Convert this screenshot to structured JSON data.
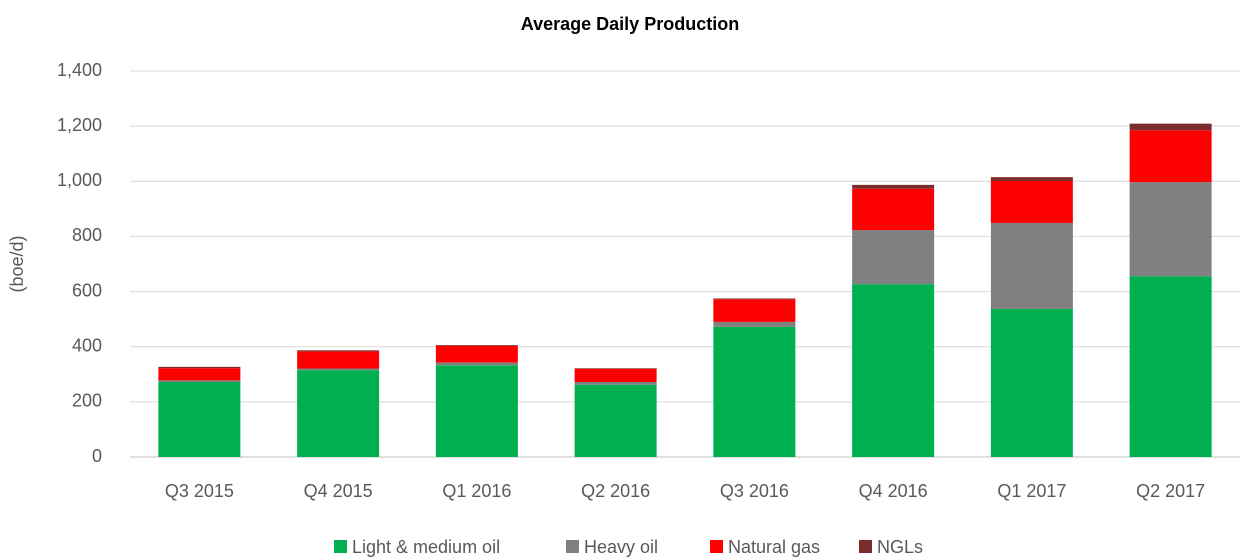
{
  "chart_data": {
    "type": "bar",
    "stacked": true,
    "title": "Average Daily Production",
    "y_label": "(boe/d)",
    "categories": [
      "Q3 2015",
      "Q4 2015",
      "Q1 2016",
      "Q2 2016",
      "Q3 2016",
      "Q4 2016",
      "Q1 2017",
      "Q2 2017"
    ],
    "series": [
      {
        "name": "Light & medium oil",
        "color": "#00b050",
        "values": [
          272,
          315,
          333,
          262,
          472,
          627,
          537,
          656
        ]
      },
      {
        "name": "Heavy oil",
        "color": "#808080",
        "values": [
          6,
          6,
          10,
          10,
          18,
          196,
          312,
          341
        ]
      },
      {
        "name": "Natural gas",
        "color": "#ff0000",
        "values": [
          44,
          62,
          60,
          48,
          82,
          150,
          152,
          188
        ]
      },
      {
        "name": "NGLs",
        "color": "#7b2c2c",
        "values": [
          5,
          4,
          3,
          2,
          3,
          14,
          14,
          24
        ]
      }
    ],
    "ylim": [
      0,
      1400
    ],
    "yticks": [
      0,
      200,
      400,
      600,
      800,
      {
        "value": 1000,
        "label": "1,000"
      },
      {
        "value": 1200,
        "label": "1,200"
      },
      {
        "value": 1400,
        "label": "1,400"
      }
    ],
    "grid": true,
    "legend": "bottom"
  }
}
